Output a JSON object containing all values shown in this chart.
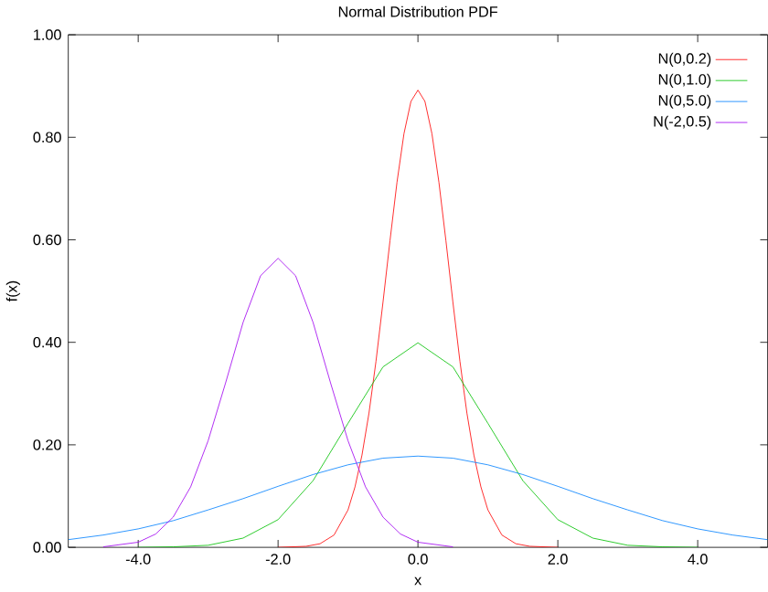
{
  "chart_data": {
    "type": "line",
    "title": "Normal Distribution PDF",
    "xlabel": "x",
    "ylabel": "f(x)",
    "xlim": [
      -5,
      5
    ],
    "ylim": [
      0,
      1
    ],
    "xticks": [
      {
        "value": -4,
        "label": "-4.0"
      },
      {
        "value": -2,
        "label": "-2.0"
      },
      {
        "value": 0,
        "label": "0.0"
      },
      {
        "value": 2,
        "label": "2.0"
      },
      {
        "value": 4,
        "label": "4.0"
      }
    ],
    "yticks": [
      {
        "value": 0,
        "label": "0.00"
      },
      {
        "value": 0.2,
        "label": "0.20"
      },
      {
        "value": 0.4,
        "label": "0.40"
      },
      {
        "value": 0.6,
        "label": "0.60"
      },
      {
        "value": 0.8,
        "label": "0.80"
      },
      {
        "value": 1,
        "label": "1.00"
      }
    ],
    "grid": false,
    "legend": "top right",
    "marker": "none",
    "line_style": "solid",
    "series": [
      {
        "name": "N(0,0.2)",
        "color": "#ff0000",
        "x": [
          -2,
          -1.6,
          -1.4,
          -1.2,
          -1,
          -0.9,
          -0.8,
          -0.7,
          -0.6,
          -0.5,
          -0.4,
          -0.3,
          -0.2,
          -0.1,
          0,
          0.1,
          0.2,
          0.3,
          0.4,
          0.5,
          0.6,
          0.7,
          0.8,
          0.9,
          1,
          1.2,
          1.4,
          1.6,
          2
        ],
        "values": [
          0,
          0.002,
          0.007,
          0.024,
          0.073,
          0.118,
          0.18,
          0.262,
          0.363,
          0.478,
          0.598,
          0.712,
          0.807,
          0.87,
          0.892,
          0.87,
          0.807,
          0.712,
          0.598,
          0.478,
          0.363,
          0.262,
          0.18,
          0.118,
          0.073,
          0.024,
          0.007,
          0.002,
          0
        ]
      },
      {
        "name": "N(0,1.0)",
        "color": "#00c000",
        "x": [
          -4,
          -3.5,
          -3,
          -2.5,
          -2,
          -1.5,
          -1,
          -0.5,
          0,
          0.5,
          1,
          1.5,
          2,
          2.5,
          3,
          3.5,
          4
        ],
        "values": [
          0,
          0.001,
          0.004,
          0.018,
          0.054,
          0.13,
          0.242,
          0.352,
          0.399,
          0.352,
          0.242,
          0.13,
          0.054,
          0.018,
          0.004,
          0.001,
          0
        ]
      },
      {
        "name": "N(0,5.0)",
        "color": "#0080ff",
        "x": [
          -5,
          -4.5,
          -4,
          -3.5,
          -3,
          -2.5,
          -2,
          -1.5,
          -1,
          -0.5,
          0,
          0.5,
          1,
          1.5,
          2,
          2.5,
          3,
          3.5,
          4,
          4.5,
          5
        ],
        "values": [
          0.015,
          0.024,
          0.036,
          0.052,
          0.073,
          0.095,
          0.119,
          0.142,
          0.161,
          0.174,
          0.178,
          0.174,
          0.161,
          0.142,
          0.119,
          0.095,
          0.073,
          0.052,
          0.036,
          0.024,
          0.015
        ]
      },
      {
        "name": "N(-2,0.5)",
        "color": "#a000f0",
        "x": [
          -4.5,
          -4,
          -3.75,
          -3.5,
          -3.25,
          -3,
          -2.75,
          -2.5,
          -2.25,
          -2,
          -1.75,
          -1.5,
          -1.25,
          -1,
          -0.75,
          -0.5,
          -0.25,
          0,
          0.5
        ],
        "values": [
          0.001,
          0.01,
          0.026,
          0.059,
          0.118,
          0.208,
          0.321,
          0.439,
          0.53,
          0.564,
          0.53,
          0.439,
          0.321,
          0.208,
          0.118,
          0.059,
          0.026,
          0.01,
          0.001
        ]
      }
    ]
  }
}
